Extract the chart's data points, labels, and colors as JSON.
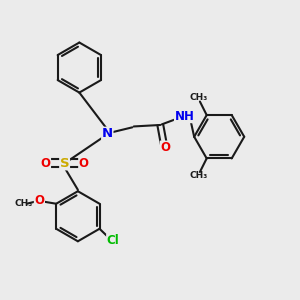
{
  "bg_color": "#ebebeb",
  "bond_color": "#1a1a1a",
  "bond_width": 1.5,
  "atom_colors": {
    "N": "#0000ee",
    "O": "#ee0000",
    "S": "#ccaa00",
    "Cl": "#00bb00",
    "H": "#777777",
    "C": "#1a1a1a"
  },
  "font_size_atom": 8.5,
  "xlim": [
    0,
    10
  ],
  "ylim": [
    0,
    10
  ]
}
